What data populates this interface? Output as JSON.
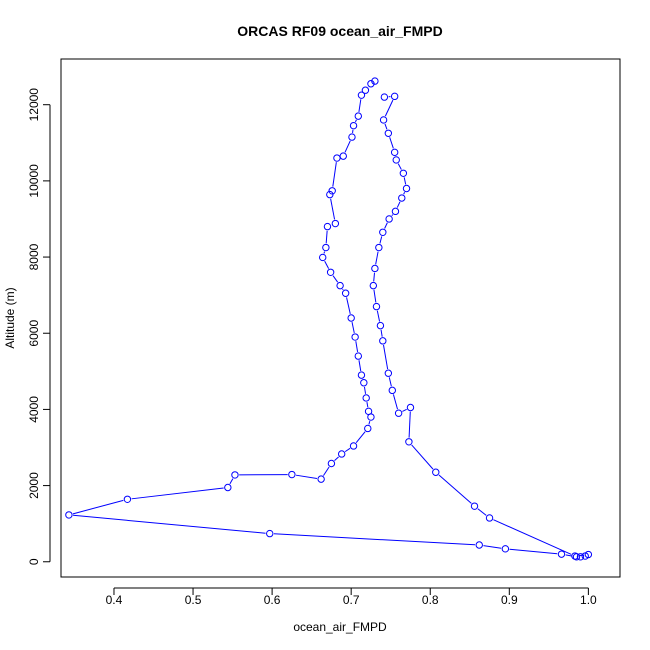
{
  "chart_data": {
    "type": "scatter",
    "title": "ORCAS RF09 ocean_air_FMPD",
    "xlabel": "ocean_air_FMPD",
    "ylabel": "Altitude (m)",
    "xlim": [
      0.333,
      1.04
    ],
    "ylim": [
      -400,
      13200
    ],
    "xticks": [
      0.4,
      0.5,
      0.6,
      0.7,
      0.8,
      0.9,
      1.0
    ],
    "xtick_labels": [
      "0.4",
      "0.5",
      "0.6",
      "0.7",
      "0.8",
      "0.9",
      "1.0"
    ],
    "yticks": [
      0,
      2000,
      4000,
      6000,
      8000,
      10000,
      12000
    ],
    "ytick_labels": [
      "0",
      "2000",
      "4000",
      "6000",
      "8000",
      "10000",
      "12000"
    ],
    "point_style": "open-circle-connected",
    "grid": false,
    "legend": "none",
    "series": [
      {
        "color": "#0000ff",
        "x": [
          0.73,
          0.725,
          0.718,
          0.713,
          0.709,
          0.703,
          0.701,
          0.69,
          0.682,
          0.676,
          0.673,
          0.68,
          0.67,
          0.668,
          0.664,
          0.674,
          0.686,
          0.693,
          0.7,
          0.705,
          0.709,
          0.713,
          0.716,
          0.719,
          0.722,
          0.725,
          0.721,
          0.703,
          0.688,
          0.675,
          0.662,
          0.625,
          0.553,
          0.544,
          0.417,
          0.343,
          0.597,
          0.862,
          0.895,
          0.966,
          0.985,
          0.99,
          0.996,
          1.0,
          0.983,
          0.875,
          0.856,
          0.807,
          0.773,
          0.775,
          0.76,
          0.752,
          0.747,
          0.74,
          0.737,
          0.732,
          0.728,
          0.73,
          0.735,
          0.74,
          0.748,
          0.756,
          0.764,
          0.77,
          0.766,
          0.757,
          0.755,
          0.747,
          0.741,
          0.755,
          0.742
        ],
        "y": [
          12620,
          12550,
          12380,
          12250,
          11700,
          11450,
          11150,
          10650,
          10600,
          9740,
          9640,
          8880,
          8800,
          8250,
          7990,
          7600,
          7250,
          7050,
          6400,
          5900,
          5400,
          4900,
          4700,
          4300,
          3950,
          3800,
          3500,
          3040,
          2830,
          2580,
          2170,
          2290,
          2280,
          1950,
          1640,
          1230,
          740,
          440,
          340,
          200,
          130,
          130,
          150,
          190,
          150,
          1150,
          1460,
          2350,
          3150,
          4050,
          3900,
          4500,
          4950,
          5800,
          6200,
          6700,
          7250,
          7700,
          8250,
          8650,
          9000,
          9200,
          9550,
          9800,
          10200,
          10550,
          10750,
          11250,
          11600,
          12220,
          12200
        ]
      }
    ]
  }
}
